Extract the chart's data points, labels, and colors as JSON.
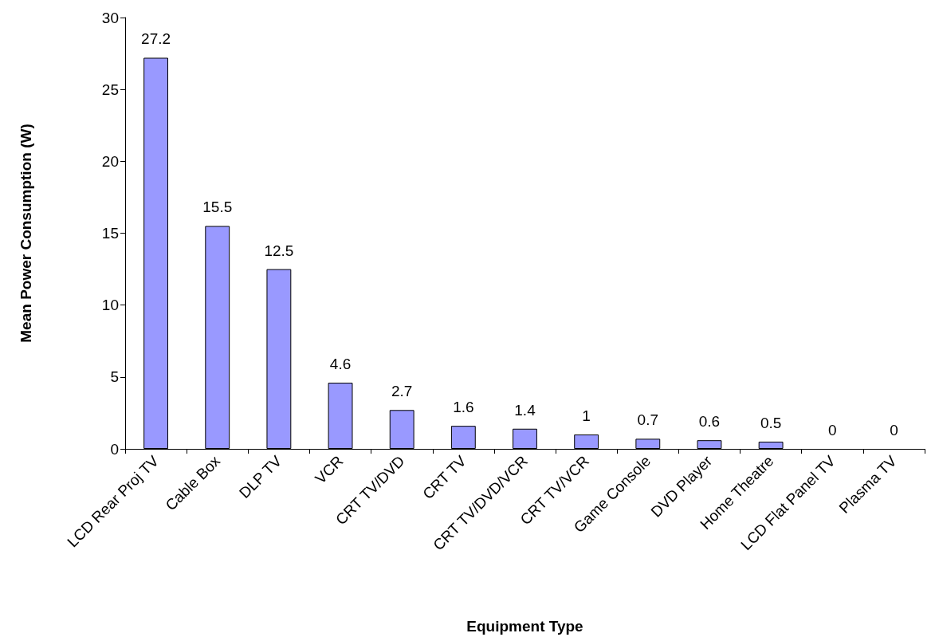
{
  "chart_data": {
    "type": "bar",
    "xlabel": "Equipment Type",
    "ylabel": "Mean Power Consumption (W)",
    "categories": [
      "LCD Rear Proj TV",
      "Cable Box",
      "DLP TV",
      "VCR",
      "CRT TV/DVD",
      "CRT TV",
      "CRT TV/DVD/VCR",
      "CRT TV/VCR",
      "Game Console",
      "DVD Player",
      "Home Theatre",
      "LCD Flat Panel TV",
      "Plasma TV"
    ],
    "values": [
      27.2,
      15.5,
      12.5,
      4.6,
      2.7,
      1.6,
      1.4,
      1,
      0.7,
      0.6,
      0.5,
      0,
      0
    ],
    "color": "#9999ff",
    "ylim": [
      0,
      30
    ],
    "yticks": [
      0,
      5,
      10,
      15,
      20,
      25,
      30
    ],
    "data_labels": true,
    "grid": false
  }
}
